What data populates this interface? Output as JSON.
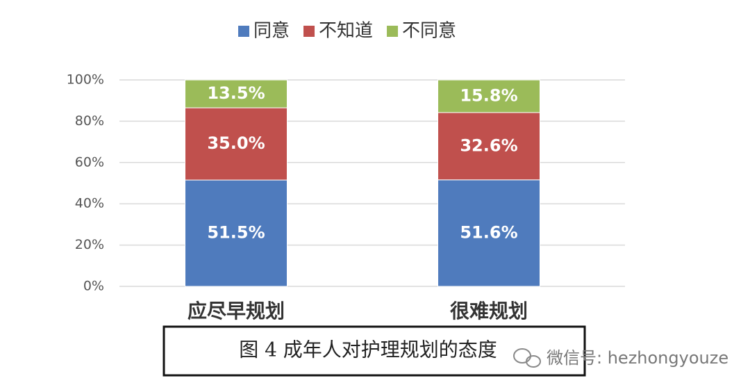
{
  "chart_data": {
    "type": "bar",
    "stacked": true,
    "categories": [
      "应尽早规划",
      "很难规划"
    ],
    "series": [
      {
        "name": "同意",
        "color": "#4f7bbd",
        "values": [
          51.5,
          51.6
        ],
        "value_labels": [
          "51.5%",
          "51.6%"
        ]
      },
      {
        "name": "不知道",
        "color": "#c0504d",
        "values": [
          35.0,
          32.6
        ],
        "value_labels": [
          "35.0%",
          "32.6%"
        ]
      },
      {
        "name": "不同意",
        "color": "#9bbb59",
        "values": [
          13.5,
          15.8
        ],
        "value_labels": [
          "13.5%",
          "15.8%"
        ]
      }
    ],
    "ylim": [
      0,
      100
    ],
    "yticks": [
      {
        "value": 0,
        "label": "0%"
      },
      {
        "value": 20,
        "label": "20%"
      },
      {
        "value": 40,
        "label": "40%"
      },
      {
        "value": 60,
        "label": "60%"
      },
      {
        "value": 80,
        "label": "80%"
      },
      {
        "value": 100,
        "label": "100%"
      }
    ],
    "grid": true,
    "legend": "top",
    "caption": "图 4  成年人对护理规划的态度",
    "watermark": "微信号: hezhongyouze"
  }
}
